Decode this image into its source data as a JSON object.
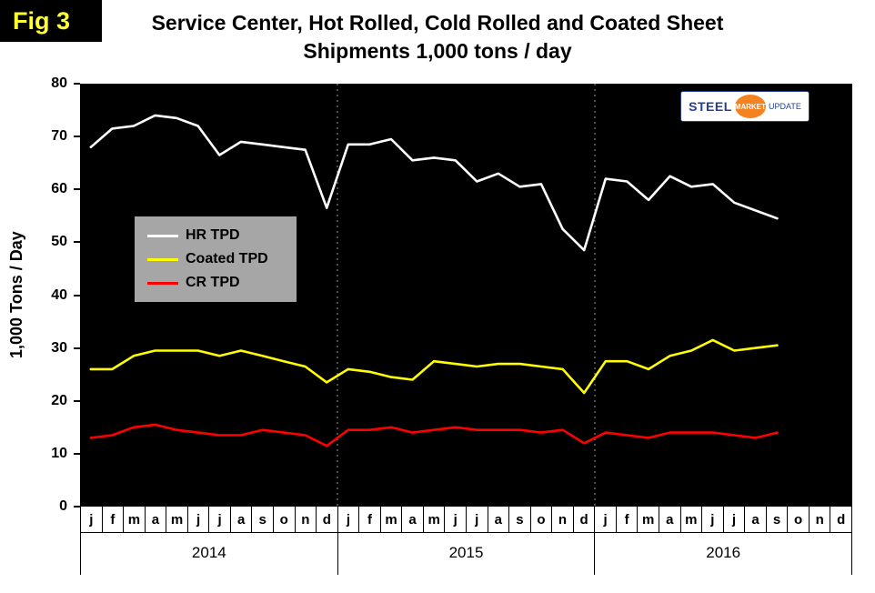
{
  "figure": {
    "tag": "Fig 3",
    "title_line1": "Service Center, Hot Rolled, Cold Rolled and Coated Sheet",
    "title_line2": "Shipments 1,000 tons / day"
  },
  "logo": {
    "word1": "STEEL",
    "word2": "MARKET",
    "word3": "UPDATE"
  },
  "legend": [
    {
      "label": "HR TPD",
      "color": "#FFFFFF"
    },
    {
      "label": "Coated TPD",
      "color": "#FFFF00"
    },
    {
      "label": "CR TPD",
      "color": "#FF0000"
    }
  ],
  "chart_data": {
    "type": "line",
    "title": "Service Center, Hot Rolled, Cold Rolled and Coated Sheet Shipments 1,000 tons / day",
    "xlabel": "",
    "ylabel": "1,000 Tons / Day",
    "ylim": [
      0,
      80
    ],
    "yticks": [
      0,
      10,
      20,
      30,
      40,
      50,
      60,
      70,
      80
    ],
    "plot_background": "#000000",
    "grid": "dashed vertical separators at year boundaries",
    "legend_position": "upper left inside plot",
    "month_letters": [
      "j",
      "f",
      "m",
      "a",
      "m",
      "j",
      "j",
      "a",
      "s",
      "o",
      "n",
      "d"
    ],
    "years": [
      "2014",
      "2015",
      "2016"
    ],
    "x_months_total": 36,
    "data_months_plotted": 33,
    "series": [
      {
        "name": "HR TPD",
        "color": "#FFFFFF",
        "values": [
          68,
          71.5,
          72,
          74,
          73.5,
          72,
          66.5,
          69,
          68.5,
          68,
          67.5,
          56.5,
          68.5,
          68.5,
          69.5,
          65.5,
          66,
          65.5,
          61.5,
          63,
          60.5,
          61,
          52.5,
          48.5,
          62,
          61.5,
          58,
          62.5,
          60.5,
          61,
          57.5,
          56,
          54.5
        ]
      },
      {
        "name": "Coated TPD",
        "color": "#FFFF00",
        "values": [
          26,
          26,
          28.5,
          29.5,
          29.5,
          29.5,
          28.5,
          29.5,
          28.5,
          27.5,
          26.5,
          23.5,
          26,
          25.5,
          24.5,
          24,
          27.5,
          27,
          26.5,
          27,
          27,
          26.5,
          26,
          21.5,
          27.5,
          27.5,
          26,
          28.5,
          29.5,
          31.5,
          29.5,
          30,
          30.5
        ]
      },
      {
        "name": "CR TPD",
        "color": "#FF0000",
        "values": [
          13,
          13.5,
          15,
          15.5,
          14.5,
          14,
          13.5,
          13.5,
          14.5,
          14,
          13.5,
          11.5,
          14.5,
          14.5,
          15,
          14,
          14.5,
          15,
          14.5,
          14.5,
          14.5,
          14,
          14.5,
          12,
          14,
          13.5,
          13,
          14,
          14,
          14,
          13.5,
          13,
          14
        ]
      }
    ]
  }
}
